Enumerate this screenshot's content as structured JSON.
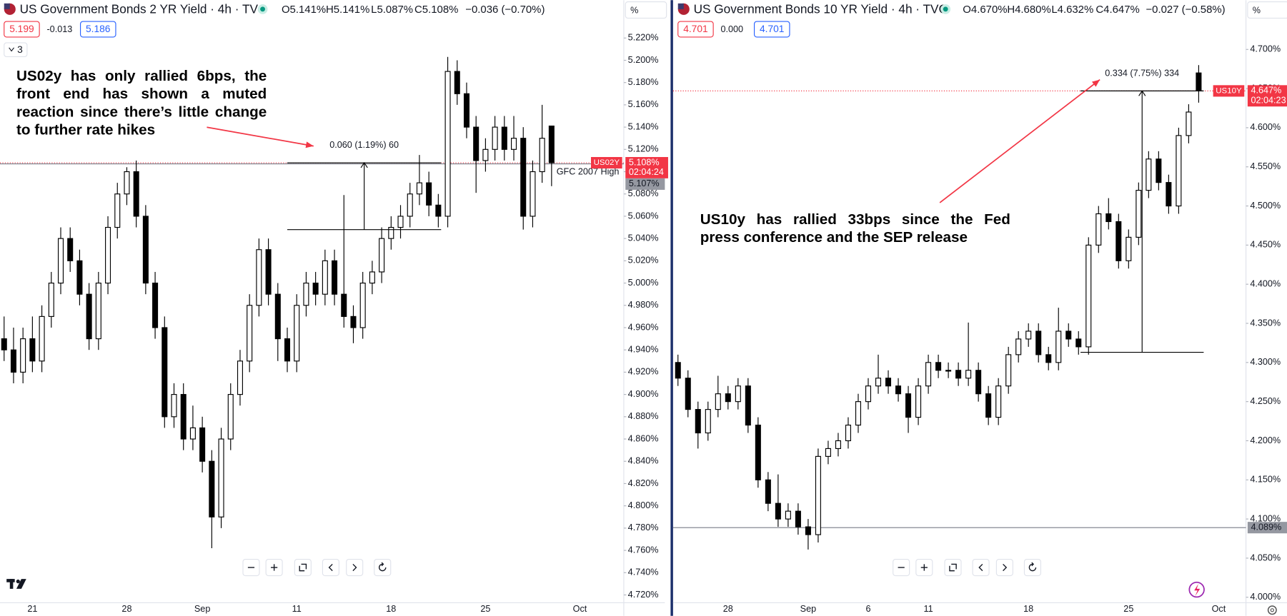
{
  "chart_data": [
    {
      "type": "candlestick",
      "title": "US Government Bonds 2 YR Yield · 4h · TVC",
      "ohlc_legend": [
        "O5.141%",
        "H5.141%",
        "L5.087%",
        "C5.108%",
        "−0.036 (−0.70%)"
      ],
      "quote": {
        "bid": "5.199",
        "spread": "-0.013",
        "ask": "5.186"
      },
      "indicators_toggle": "3",
      "unit": "%",
      "annotation": "US02y has only rallied 6bps, the front end has shown a muted reaction since there’s little change to further rate hikes",
      "categories": [
        null,
        null,
        null,
        "21",
        null,
        null,
        null,
        null,
        null,
        null,
        null,
        null,
        null,
        "28",
        null,
        null,
        null,
        null,
        null,
        null,
        null,
        "Sep",
        null,
        null,
        null,
        null,
        null,
        null,
        null,
        null,
        null,
        "11",
        null,
        null,
        null,
        null,
        null,
        null,
        null,
        null,
        null,
        "18",
        null,
        null,
        null,
        null,
        null,
        null,
        null,
        null,
        null,
        "25",
        null,
        null,
        null,
        null,
        null,
        null,
        null,
        null,
        null,
        "Oct"
      ],
      "series": [
        {
          "name": "US02Y",
          "color": "#000000",
          "open": [
            4.95,
            4.94,
            4.92,
            4.95,
            4.93,
            4.97,
            5.0,
            5.04,
            5.02,
            4.99,
            4.95,
            5.0,
            5.05,
            5.08,
            5.1,
            5.06,
            5.0,
            4.96,
            4.88,
            4.9,
            4.86,
            4.87,
            4.84,
            4.79,
            4.86,
            4.9,
            4.93,
            4.98,
            5.03,
            4.99,
            4.95,
            4.93,
            4.98,
            5.0,
            4.99,
            5.02,
            4.99,
            4.97,
            4.96,
            5.0,
            5.01,
            5.04,
            5.05,
            5.06,
            5.08,
            5.09,
            5.07,
            5.06,
            5.19,
            5.17,
            5.14,
            5.11,
            5.12,
            5.14,
            5.12,
            5.13,
            5.06,
            5.1,
            5.141,
            null,
            null,
            null
          ],
          "high": [
            4.97,
            4.96,
            4.96,
            4.97,
            4.98,
            5.01,
            5.05,
            5.05,
            5.03,
            5.0,
            5.01,
            5.06,
            5.09,
            5.104,
            5.11,
            5.07,
            5.01,
            4.97,
            4.91,
            4.91,
            4.89,
            4.88,
            4.85,
            4.87,
            4.91,
            4.94,
            4.99,
            5.04,
            5.04,
            5.0,
            4.96,
            4.99,
            5.01,
            5.01,
            5.03,
            5.03,
            5.079,
            4.98,
            5.01,
            5.02,
            5.05,
            5.06,
            5.07,
            5.09,
            5.115,
            5.1,
            5.08,
            5.203,
            5.2,
            5.18,
            5.15,
            5.13,
            5.15,
            5.15,
            5.15,
            5.14,
            5.11,
            5.16,
            5.141,
            null,
            null,
            null
          ],
          "low": [
            4.93,
            4.91,
            4.91,
            4.92,
            4.92,
            4.96,
            4.99,
            5.01,
            4.98,
            4.94,
            4.94,
            4.99,
            5.04,
            5.07,
            5.05,
            4.99,
            4.95,
            4.87,
            4.87,
            4.85,
            4.85,
            4.83,
            4.762,
            4.78,
            4.85,
            4.89,
            4.92,
            4.97,
            4.98,
            4.93,
            4.92,
            4.92,
            4.97,
            4.98,
            4.98,
            4.98,
            4.96,
            4.946,
            4.95,
            4.99,
            5.0,
            5.03,
            5.04,
            5.05,
            5.07,
            5.06,
            5.05,
            5.05,
            5.16,
            5.13,
            5.081,
            5.1,
            5.11,
            5.11,
            5.11,
            5.048,
            5.05,
            5.09,
            5.087,
            null,
            null,
            null
          ],
          "close": [
            4.94,
            4.92,
            4.95,
            4.93,
            4.97,
            5.0,
            5.04,
            5.02,
            4.99,
            4.95,
            5.0,
            5.05,
            5.08,
            5.1,
            5.06,
            5.0,
            4.96,
            4.88,
            4.9,
            4.86,
            4.87,
            4.84,
            4.79,
            4.86,
            4.9,
            4.93,
            4.98,
            5.03,
            4.99,
            4.95,
            4.93,
            4.98,
            5.0,
            4.99,
            5.02,
            4.99,
            4.97,
            4.96,
            5.0,
            5.01,
            5.04,
            5.05,
            5.06,
            5.08,
            5.09,
            5.07,
            5.06,
            5.19,
            5.17,
            5.14,
            5.11,
            5.12,
            5.14,
            5.12,
            5.13,
            5.06,
            5.1,
            5.13,
            5.108,
            null,
            null,
            null
          ]
        }
      ],
      "ylim": [
        4.713,
        5.254
      ],
      "yticks": [
        {
          "value": 4.72,
          "label": "4.720%"
        },
        {
          "value": 4.74,
          "label": "4.740%"
        },
        {
          "value": 4.76,
          "label": "4.760%"
        },
        {
          "value": 4.78,
          "label": "4.780%"
        },
        {
          "value": 4.8,
          "label": "4.800%"
        },
        {
          "value": 4.82,
          "label": "4.820%"
        },
        {
          "value": 4.84,
          "label": "4.840%"
        },
        {
          "value": 4.86,
          "label": "4.860%"
        },
        {
          "value": 4.88,
          "label": "4.880%"
        },
        {
          "value": 4.9,
          "label": "4.900%"
        },
        {
          "value": 4.92,
          "label": "4.920%"
        },
        {
          "value": 4.94,
          "label": "4.940%"
        },
        {
          "value": 4.96,
          "label": "4.960%"
        },
        {
          "value": 4.98,
          "label": "4.980%"
        },
        {
          "value": 5.0,
          "label": "5.000%"
        },
        {
          "value": 5.02,
          "label": "5.020%"
        },
        {
          "value": 5.04,
          "label": "5.040%"
        },
        {
          "value": 5.06,
          "label": "5.060%"
        },
        {
          "value": 5.08,
          "label": "5.080%"
        },
        {
          "value": 5.1,
          "label": "5.100%"
        },
        {
          "value": 5.12,
          "label": "5.120%"
        },
        {
          "value": 5.14,
          "label": "5.140%"
        },
        {
          "value": 5.16,
          "label": "5.160%"
        },
        {
          "value": 5.18,
          "label": "5.180%"
        },
        {
          "value": 5.2,
          "label": "5.200%"
        },
        {
          "value": 5.22,
          "label": "5.220%"
        }
      ],
      "last_price": {
        "value": 5.108,
        "label": "5.108%",
        "countdown": "02:04:24"
      },
      "horizontal_line": {
        "value": 5.107,
        "label": "5.107%",
        "text": "GFC 2007 High"
      },
      "measure": {
        "low": 5.048,
        "high": 5.108,
        "label": "0.060 (1.19%) 60"
      },
      "grid": false
    },
    {
      "type": "candlestick",
      "title": "US Government Bonds 10 YR Yield · 4h · TVC",
      "ohlc_legend": [
        "O4.670%",
        "H4.680%",
        "L4.632%",
        "C4.647%",
        "−0.027 (−0.58%)"
      ],
      "quote": {
        "bid": "4.701",
        "spread": "0.000",
        "ask": "4.701"
      },
      "unit": "%",
      "annotation": "US10y has rallied 33bps since the Fed press conference and the SEP release",
      "categories": [
        null,
        null,
        null,
        null,
        null,
        "28",
        null,
        null,
        null,
        null,
        null,
        null,
        null,
        "Sep",
        null,
        null,
        null,
        null,
        null,
        "6",
        null,
        null,
        null,
        null,
        null,
        "11",
        null,
        null,
        null,
        null,
        null,
        null,
        null,
        null,
        null,
        "18",
        null,
        null,
        null,
        null,
        null,
        null,
        null,
        null,
        null,
        "25",
        null,
        null,
        null,
        null,
        null,
        null,
        null,
        null,
        "Oct"
      ],
      "series": [
        {
          "name": "US10Y",
          "color": "#000000",
          "open": [
            4.3,
            4.28,
            4.24,
            4.21,
            4.24,
            4.26,
            4.25,
            4.27,
            4.22,
            4.15,
            4.12,
            4.1,
            4.11,
            4.09,
            4.08,
            4.18,
            4.19,
            4.2,
            4.22,
            4.25,
            4.27,
            4.28,
            4.27,
            4.26,
            4.23,
            4.27,
            4.3,
            4.29,
            4.29,
            4.28,
            4.29,
            4.26,
            4.23,
            4.27,
            4.31,
            4.33,
            4.34,
            4.31,
            4.3,
            4.34,
            4.33,
            4.32,
            4.45,
            4.49,
            4.48,
            4.43,
            4.46,
            4.52,
            4.56,
            4.53,
            4.5,
            4.59,
            4.67,
            null,
            null
          ],
          "high": [
            4.31,
            4.29,
            4.25,
            4.25,
            4.283,
            4.27,
            4.28,
            4.28,
            4.23,
            4.16,
            4.157,
            4.12,
            4.12,
            4.1,
            4.19,
            4.2,
            4.21,
            4.23,
            4.26,
            4.28,
            4.31,
            4.29,
            4.28,
            4.27,
            4.28,
            4.31,
            4.31,
            4.3,
            4.3,
            4.351,
            4.3,
            4.27,
            4.28,
            4.32,
            4.34,
            4.35,
            4.35,
            4.32,
            4.37,
            4.35,
            4.34,
            4.46,
            4.5,
            4.51,
            4.49,
            4.47,
            4.53,
            4.57,
            4.57,
            4.54,
            4.6,
            4.63,
            4.68,
            null,
            null
          ],
          "low": [
            4.27,
            4.23,
            4.19,
            4.2,
            4.23,
            4.24,
            4.24,
            4.21,
            4.14,
            4.11,
            4.09,
            4.09,
            4.08,
            4.061,
            4.07,
            4.17,
            4.18,
            4.19,
            4.21,
            4.24,
            4.26,
            4.26,
            4.25,
            4.21,
            4.22,
            4.26,
            4.28,
            4.28,
            4.27,
            4.27,
            4.25,
            4.22,
            4.22,
            4.26,
            4.3,
            4.32,
            4.3,
            4.29,
            4.29,
            4.32,
            4.31,
            4.31,
            4.44,
            4.47,
            4.42,
            4.42,
            4.45,
            4.51,
            4.52,
            4.49,
            4.49,
            4.58,
            4.632,
            null,
            null
          ],
          "close": [
            4.28,
            4.24,
            4.21,
            4.24,
            4.26,
            4.25,
            4.27,
            4.22,
            4.15,
            4.12,
            4.1,
            4.11,
            4.09,
            4.08,
            4.18,
            4.19,
            4.2,
            4.22,
            4.25,
            4.27,
            4.28,
            4.27,
            4.26,
            4.23,
            4.27,
            4.3,
            4.29,
            4.29,
            4.28,
            4.29,
            4.26,
            4.23,
            4.27,
            4.31,
            4.33,
            4.34,
            4.31,
            4.3,
            4.34,
            4.33,
            4.32,
            4.45,
            4.49,
            4.48,
            4.43,
            4.46,
            4.52,
            4.56,
            4.53,
            4.5,
            4.59,
            4.62,
            4.647,
            null,
            null
          ]
        }
      ],
      "ylim": [
        3.993,
        4.763
      ],
      "yticks": [
        {
          "value": 4.0,
          "label": "4.000%"
        },
        {
          "value": 4.05,
          "label": "4.050%"
        },
        {
          "value": 4.1,
          "label": "4.100%"
        },
        {
          "value": 4.15,
          "label": "4.150%"
        },
        {
          "value": 4.2,
          "label": "4.200%"
        },
        {
          "value": 4.25,
          "label": "4.250%"
        },
        {
          "value": 4.3,
          "label": "4.300%"
        },
        {
          "value": 4.35,
          "label": "4.350%"
        },
        {
          "value": 4.4,
          "label": "4.400%"
        },
        {
          "value": 4.45,
          "label": "4.450%"
        },
        {
          "value": 4.5,
          "label": "4.500%"
        },
        {
          "value": 4.55,
          "label": "4.550%"
        },
        {
          "value": 4.6,
          "label": "4.600%"
        },
        {
          "value": 4.65,
          "label": "4.650%"
        },
        {
          "value": 4.7,
          "label": "4.700%"
        }
      ],
      "last_price": {
        "value": 4.647,
        "label": "4.647%",
        "countdown": "02:04:23"
      },
      "horizontal_line": {
        "value": 4.089,
        "label": "4.089%"
      },
      "measure": {
        "low": 4.313,
        "high": 4.647,
        "label": "0.334 (7.75%) 334"
      },
      "grid": false
    }
  ]
}
